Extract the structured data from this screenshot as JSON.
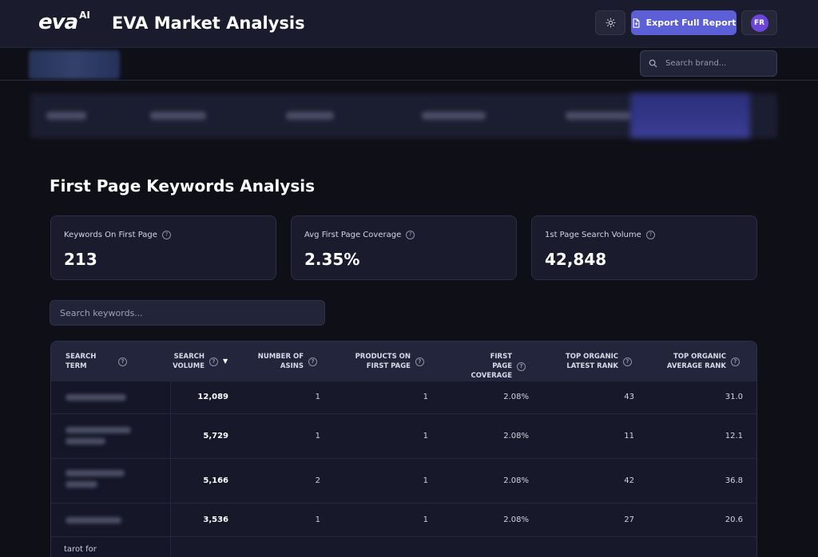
{
  "header": {
    "logo_text": "eva",
    "logo_suffix": "AI",
    "title": "EVA Market Analysis",
    "export_label": "Export Full Report",
    "avatar_initials": "FR",
    "theme_icon": "sun-icon"
  },
  "brand_search": {
    "placeholder": "Search brand..."
  },
  "section": {
    "title": "First Page Keywords Analysis"
  },
  "stats": [
    {
      "label": "Keywords On First Page",
      "value": "213"
    },
    {
      "label": "Avg First Page Coverage",
      "value": "2.35%"
    },
    {
      "label": "1st Page Search Volume",
      "value": "42,848"
    }
  ],
  "keyword_search": {
    "placeholder": "Search keywords..."
  },
  "table": {
    "columns": [
      {
        "line1": "Search",
        "line2": "Term"
      },
      {
        "line1": "Search",
        "line2": "Volume"
      },
      {
        "line1": "Number of",
        "line2": "ASINs"
      },
      {
        "line1": "Products on",
        "line2": "First Page"
      },
      {
        "line1": "First Page",
        "line2": "Coverage"
      },
      {
        "line1": "Top Organic",
        "line2": "Latest Rank"
      },
      {
        "line1": "Top Organic",
        "line2": "Average Rank"
      }
    ],
    "rows": [
      {
        "volume": "12,089",
        "asins": "1",
        "products": "1",
        "coverage": "2.08%",
        "latest": "43",
        "average": "31.0"
      },
      {
        "volume": "5,729",
        "asins": "1",
        "products": "1",
        "coverage": "2.08%",
        "latest": "11",
        "average": "12.1"
      },
      {
        "volume": "5,166",
        "asins": "2",
        "products": "1",
        "coverage": "2.08%",
        "latest": "42",
        "average": "36.8"
      },
      {
        "volume": "3,536",
        "asins": "1",
        "products": "1",
        "coverage": "2.08%",
        "latest": "27",
        "average": "20.6"
      }
    ],
    "partial_row_term": "tarot for"
  }
}
